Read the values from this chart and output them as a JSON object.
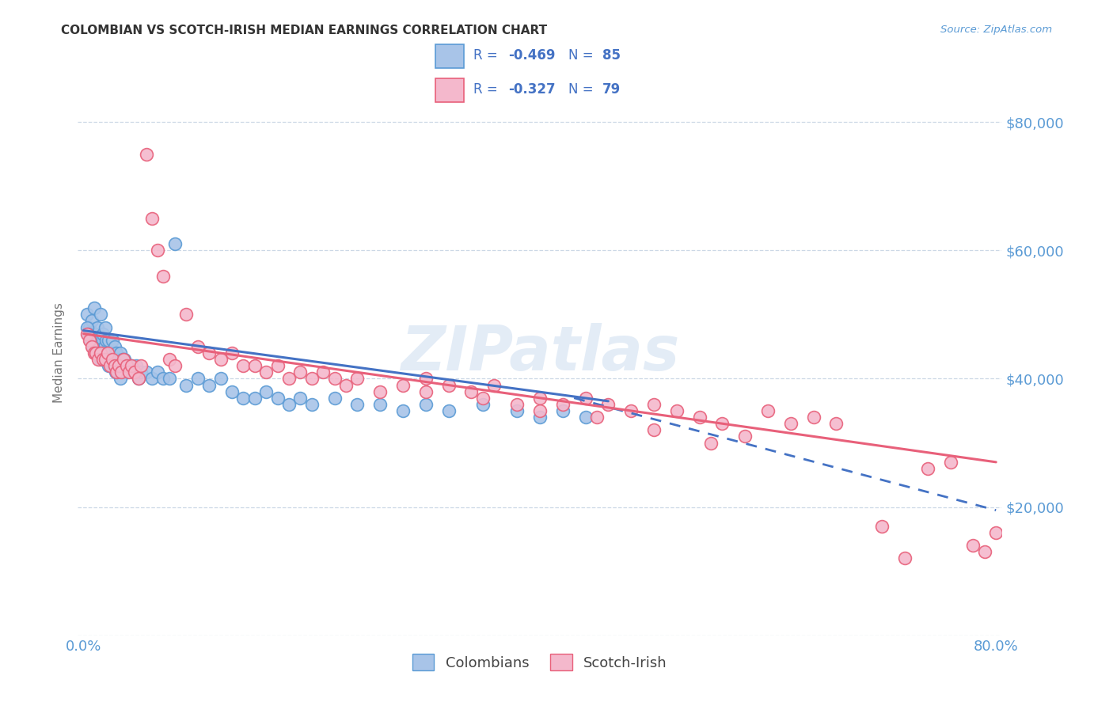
{
  "title": "COLOMBIAN VS SCOTCH-IRISH MEDIAN EARNINGS CORRELATION CHART",
  "source": "Source: ZipAtlas.com",
  "ylabel": "Median Earnings",
  "xlim": [
    -0.005,
    0.805
  ],
  "ylim": [
    0,
    88000
  ],
  "yticks": [
    0,
    20000,
    40000,
    60000,
    80000
  ],
  "ytick_labels": [
    "",
    "$20,000",
    "$40,000",
    "$60,000",
    "$80,000"
  ],
  "xticks": [
    0.0,
    0.2,
    0.4,
    0.6,
    0.8
  ],
  "xtick_labels": [
    "0.0%",
    "",
    "",
    "",
    "80.0%"
  ],
  "watermark": "ZIPatlas",
  "legend_blue_r": "-0.469",
  "legend_blue_n": "85",
  "legend_pink_r": "-0.327",
  "legend_pink_n": "79",
  "blue_fill": "#a8c4e8",
  "blue_edge": "#5b9bd5",
  "pink_fill": "#f4b8cc",
  "pink_edge": "#e8607a",
  "blue_trend_color": "#4472c4",
  "pink_trend_color": "#e8607a",
  "axis_label_color": "#5b9bd5",
  "legend_text_color": "#4472c4",
  "grid_color": "#c0cfe0",
  "background_color": "#ffffff",
  "colombians_x": [
    0.003,
    0.005,
    0.006,
    0.007,
    0.008,
    0.009,
    0.01,
    0.011,
    0.012,
    0.013,
    0.014,
    0.015,
    0.016,
    0.017,
    0.018,
    0.019,
    0.02,
    0.021,
    0.022,
    0.023,
    0.024,
    0.025,
    0.026,
    0.027,
    0.028,
    0.029,
    0.03,
    0.031,
    0.032,
    0.033,
    0.034,
    0.035,
    0.036,
    0.037,
    0.038,
    0.04,
    0.042,
    0.044,
    0.046,
    0.048,
    0.05,
    0.055,
    0.06,
    0.065,
    0.07,
    0.075,
    0.08,
    0.09,
    0.1,
    0.11,
    0.12,
    0.13,
    0.14,
    0.15,
    0.16,
    0.17,
    0.18,
    0.19,
    0.2,
    0.22,
    0.24,
    0.26,
    0.28,
    0.3,
    0.32,
    0.35,
    0.38,
    0.4,
    0.42,
    0.44,
    0.003,
    0.004,
    0.006,
    0.008,
    0.01,
    0.012,
    0.015,
    0.018,
    0.02,
    0.022,
    0.024,
    0.026,
    0.028,
    0.03,
    0.032
  ],
  "colombians_y": [
    50000,
    48000,
    47000,
    49000,
    46000,
    51000,
    47000,
    45000,
    48000,
    44000,
    46000,
    50000,
    43000,
    47000,
    45000,
    48000,
    46000,
    44000,
    46000,
    44000,
    43000,
    46000,
    42000,
    45000,
    43000,
    44000,
    43000,
    42000,
    44000,
    42000,
    43000,
    41000,
    43000,
    42000,
    41000,
    42000,
    42000,
    41000,
    42000,
    40000,
    41000,
    41000,
    40000,
    41000,
    40000,
    40000,
    61000,
    39000,
    40000,
    39000,
    40000,
    38000,
    37000,
    37000,
    38000,
    37000,
    36000,
    37000,
    36000,
    37000,
    36000,
    36000,
    35000,
    36000,
    35000,
    36000,
    35000,
    34000,
    35000,
    34000,
    48000,
    47000,
    46000,
    45000,
    44000,
    44000,
    43000,
    43000,
    43000,
    42000,
    42000,
    42000,
    41000,
    41000,
    40000
  ],
  "scotch_irish_x": [
    0.003,
    0.005,
    0.007,
    0.009,
    0.011,
    0.013,
    0.015,
    0.017,
    0.019,
    0.021,
    0.023,
    0.025,
    0.027,
    0.029,
    0.031,
    0.033,
    0.035,
    0.038,
    0.04,
    0.042,
    0.045,
    0.048,
    0.05,
    0.055,
    0.06,
    0.065,
    0.07,
    0.075,
    0.08,
    0.09,
    0.1,
    0.11,
    0.12,
    0.13,
    0.14,
    0.15,
    0.16,
    0.17,
    0.18,
    0.19,
    0.2,
    0.21,
    0.22,
    0.23,
    0.24,
    0.26,
    0.28,
    0.3,
    0.32,
    0.34,
    0.36,
    0.38,
    0.4,
    0.42,
    0.44,
    0.46,
    0.48,
    0.5,
    0.52,
    0.54,
    0.56,
    0.58,
    0.6,
    0.62,
    0.64,
    0.66,
    0.7,
    0.72,
    0.74,
    0.76,
    0.78,
    0.79,
    0.8,
    0.3,
    0.35,
    0.4,
    0.45,
    0.5,
    0.55
  ],
  "scotch_irish_y": [
    47000,
    46000,
    45000,
    44000,
    44000,
    43000,
    44000,
    43000,
    43000,
    44000,
    42000,
    43000,
    42000,
    41000,
    42000,
    41000,
    43000,
    42000,
    41000,
    42000,
    41000,
    40000,
    42000,
    75000,
    65000,
    60000,
    56000,
    43000,
    42000,
    50000,
    45000,
    44000,
    43000,
    44000,
    42000,
    42000,
    41000,
    42000,
    40000,
    41000,
    40000,
    41000,
    40000,
    39000,
    40000,
    38000,
    39000,
    38000,
    39000,
    38000,
    39000,
    36000,
    37000,
    36000,
    37000,
    36000,
    35000,
    36000,
    35000,
    34000,
    33000,
    31000,
    35000,
    33000,
    34000,
    33000,
    17000,
    12000,
    26000,
    27000,
    14000,
    13000,
    16000,
    40000,
    37000,
    35000,
    34000,
    32000,
    30000
  ],
  "blue_trend": [
    0.0,
    47500,
    0.46,
    36500
  ],
  "blue_dash": [
    0.43,
    37000,
    0.8,
    19500
  ],
  "pink_trend": [
    0.0,
    47000,
    0.8,
    27000
  ]
}
